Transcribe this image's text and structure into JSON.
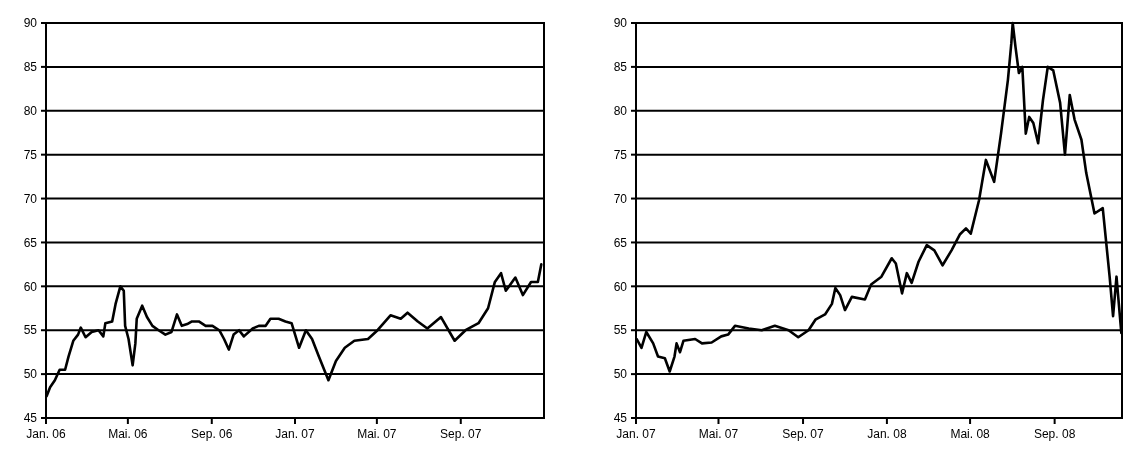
{
  "chart_data": [
    {
      "type": "line",
      "xlim": [
        "2006-01-01",
        "2008-01-01"
      ],
      "ylim": [
        45,
        90
      ],
      "yticks": [
        45,
        50,
        55,
        60,
        65,
        70,
        75,
        80,
        85,
        90
      ],
      "xticks": [
        {
          "value": "2006-01-01",
          "label": "Jan. 06"
        },
        {
          "value": "2006-05-01",
          "label": "Mai. 06"
        },
        {
          "value": "2006-09-01",
          "label": "Sep. 06"
        },
        {
          "value": "2007-01-01",
          "label": "Jan. 07"
        },
        {
          "value": "2007-05-01",
          "label": "Mai. 07"
        },
        {
          "value": "2007-09-01",
          "label": "Sep. 07"
        }
      ],
      "grid": "y",
      "series": [
        {
          "color": "#000000",
          "x": [
            "2006-01-02",
            "2006-01-07",
            "2006-01-14",
            "2006-01-21",
            "2006-01-29",
            "2006-02-03",
            "2006-02-10",
            "2006-02-17",
            "2006-02-21",
            "2006-02-28",
            "2006-03-09",
            "2006-03-19",
            "2006-03-26",
            "2006-03-29",
            "2006-04-08",
            "2006-04-13",
            "2006-04-20",
            "2006-04-25",
            "2006-04-27",
            "2006-05-02",
            "2006-05-08",
            "2006-05-12",
            "2006-05-14",
            "2006-05-22",
            "2006-05-29",
            "2006-06-06",
            "2006-06-15",
            "2006-06-25",
            "2006-07-04",
            "2006-07-12",
            "2006-07-19",
            "2006-07-27",
            "2006-08-03",
            "2006-08-13",
            "2006-08-23",
            "2006-09-02",
            "2006-09-12",
            "2006-09-19",
            "2006-09-26",
            "2006-10-03",
            "2006-10-11",
            "2006-10-18",
            "2006-10-31",
            "2006-11-09",
            "2006-11-19",
            "2006-11-26",
            "2006-12-08",
            "2006-12-18",
            "2006-12-27",
            "2007-01-07",
            "2007-01-17",
            "2007-01-26",
            "2007-02-05",
            "2007-02-19",
            "2007-03-02",
            "2007-03-15",
            "2007-03-29",
            "2007-04-18",
            "2007-05-02",
            "2007-05-21",
            "2007-06-05",
            "2007-06-15",
            "2007-06-30",
            "2007-07-14",
            "2007-08-03",
            "2007-08-23",
            "2007-09-08",
            "2007-09-27",
            "2007-10-11",
            "2007-10-21",
            "2007-10-30",
            "2007-11-06",
            "2007-11-20",
            "2007-12-01",
            "2007-12-13",
            "2007-12-23",
            "2007-12-28"
          ],
          "values": [
            47.5,
            48.5,
            49.3,
            50.5,
            50.5,
            52,
            53.8,
            54.5,
            55.3,
            54.2,
            54.8,
            55,
            54.3,
            55.8,
            56,
            58,
            60,
            59.5,
            55.5,
            54,
            51,
            53.5,
            56.3,
            57.8,
            56.5,
            55.5,
            55,
            54.5,
            54.8,
            56.8,
            55.5,
            55.7,
            56,
            56,
            55.5,
            55.5,
            55,
            54,
            52.8,
            54.5,
            55,
            54.3,
            55.2,
            55.5,
            55.5,
            56.3,
            56.3,
            56,
            55.8,
            53,
            55,
            54,
            52,
            49.3,
            51.5,
            53,
            53.8,
            54,
            55,
            56.7,
            56.3,
            57,
            56,
            55.2,
            56.5,
            53.8,
            55,
            55.8,
            57.5,
            60.5,
            61.5,
            59.5,
            61,
            59,
            60.5,
            60.5,
            62.5
          ]
        }
      ]
    },
    {
      "type": "line",
      "xlim": [
        "2007-01-01",
        "2008-12-08"
      ],
      "ylim": [
        45,
        90
      ],
      "yticks": [
        45,
        50,
        55,
        60,
        65,
        70,
        75,
        80,
        85,
        90
      ],
      "xticks": [
        {
          "value": "2007-01-01",
          "label": "Jan. 07"
        },
        {
          "value": "2007-05-01",
          "label": "Mai. 07"
        },
        {
          "value": "2007-09-01",
          "label": "Sep. 07"
        },
        {
          "value": "2008-01-01",
          "label": "Jan. 08"
        },
        {
          "value": "2008-05-01",
          "label": "Mai. 08"
        },
        {
          "value": "2008-09-01",
          "label": "Sep. 08"
        }
      ],
      "grid": "y",
      "series": [
        {
          "color": "#000000",
          "x": [
            "2007-01-02",
            "2007-01-09",
            "2007-01-16",
            "2007-01-26",
            "2007-02-02",
            "2007-02-12",
            "2007-02-19",
            "2007-02-26",
            "2007-03-01",
            "2007-03-06",
            "2007-03-11",
            "2007-03-28",
            "2007-04-07",
            "2007-04-21",
            "2007-05-05",
            "2007-05-15",
            "2007-05-25",
            "2007-06-14",
            "2007-07-03",
            "2007-07-22",
            "2007-08-11",
            "2007-08-25",
            "2007-09-09",
            "2007-09-19",
            "2007-10-03",
            "2007-10-13",
            "2007-10-18",
            "2007-10-25",
            "2007-11-01",
            "2007-11-11",
            "2007-11-30",
            "2007-12-09",
            "2007-12-24",
            "2008-01-08",
            "2008-01-14",
            "2008-01-23",
            "2008-01-30",
            "2008-02-06",
            "2008-02-16",
            "2008-02-28",
            "2008-03-10",
            "2008-03-22",
            "2008-04-04",
            "2008-04-16",
            "2008-04-25",
            "2008-05-02",
            "2008-05-14",
            "2008-05-24",
            "2008-06-05",
            "2008-06-15",
            "2008-06-25",
            "2008-06-30",
            "2008-07-02",
            "2008-07-06",
            "2008-07-11",
            "2008-07-16",
            "2008-07-21",
            "2008-07-26",
            "2008-08-01",
            "2008-08-08",
            "2008-08-15",
            "2008-08-22",
            "2008-08-30",
            "2008-09-09",
            "2008-09-16",
            "2008-09-23",
            "2008-09-30",
            "2008-10-10",
            "2008-10-17",
            "2008-10-29",
            "2008-11-10",
            "2008-11-20",
            "2008-11-25",
            "2008-11-30",
            "2008-12-07"
          ],
          "values": [
            54,
            53,
            54.8,
            53.5,
            52,
            51.8,
            50.3,
            52,
            53.5,
            52.5,
            53.8,
            54,
            53.5,
            53.6,
            54.3,
            54.5,
            55.5,
            55.2,
            55,
            55.5,
            55,
            54.2,
            55,
            56.2,
            56.8,
            58,
            59.8,
            59,
            57.3,
            58.8,
            58.5,
            60.2,
            61.1,
            63.2,
            62.6,
            59.2,
            61.5,
            60.4,
            62.8,
            64.7,
            64.1,
            62.4,
            64.1,
            65.9,
            66.6,
            66,
            69.8,
            74.4,
            71.9,
            77.4,
            83.5,
            87.7,
            90,
            87.3,
            84.3,
            85,
            77.4,
            79.3,
            78.6,
            76.3,
            81.2,
            85,
            84.6,
            80.9,
            75,
            81.8,
            79,
            76.7,
            72.9,
            68.3,
            68.9,
            61.1,
            56.6,
            61.1,
            54.7
          ]
        }
      ]
    }
  ]
}
